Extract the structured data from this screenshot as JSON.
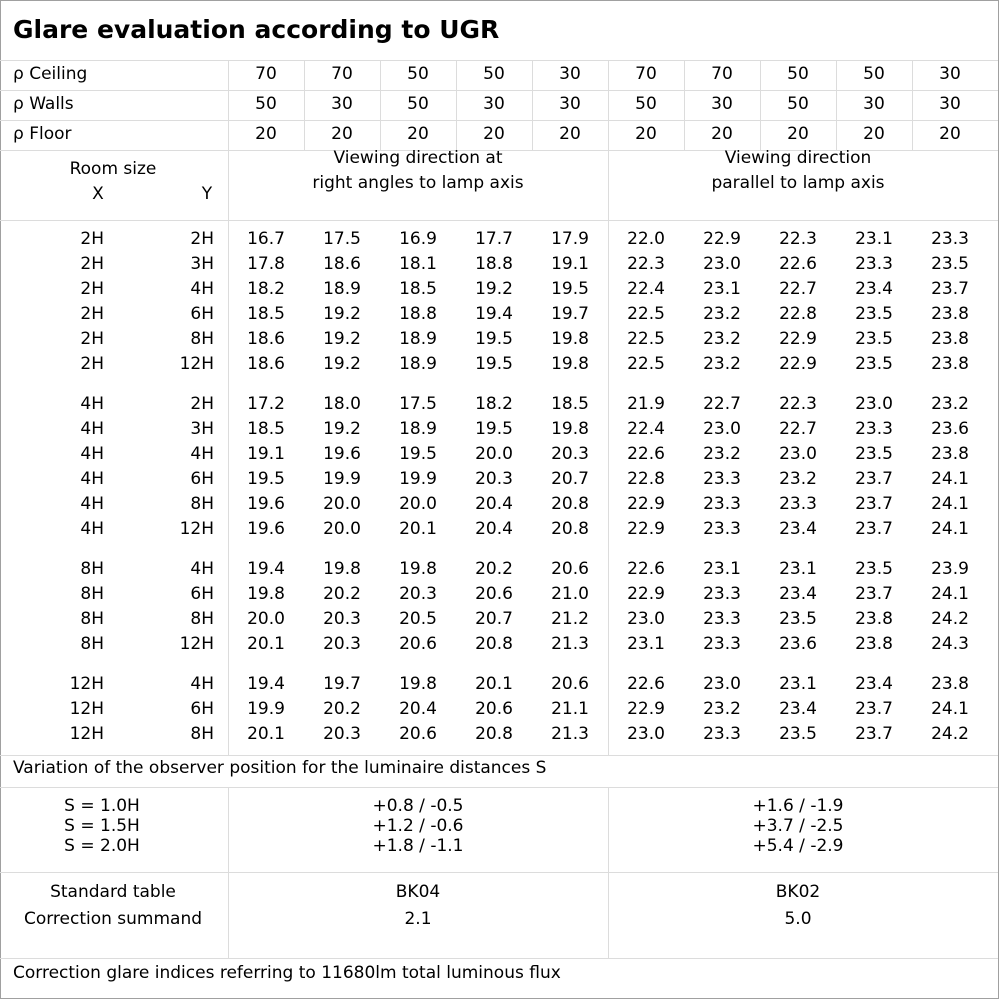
{
  "title": "Glare evaluation according to UGR",
  "reflectances": [
    {
      "label": "ρ Ceiling",
      "values": [
        "70",
        "70",
        "50",
        "50",
        "30",
        "70",
        "70",
        "50",
        "50",
        "30"
      ]
    },
    {
      "label": "ρ Walls",
      "values": [
        "50",
        "30",
        "50",
        "30",
        "30",
        "50",
        "30",
        "50",
        "30",
        "30"
      ]
    },
    {
      "label": "ρ Floor",
      "values": [
        "20",
        "20",
        "20",
        "20",
        "20",
        "20",
        "20",
        "20",
        "20",
        "20"
      ]
    }
  ],
  "header": {
    "room_size": "Room size",
    "x": "X",
    "y": "Y",
    "dir_right_1": "Viewing direction at",
    "dir_right_2": "right angles to lamp axis",
    "dir_parallel_1": "Viewing direction",
    "dir_parallel_2": "parallel to lamp axis"
  },
  "groups": [
    [
      [
        "2H",
        "2H",
        "16.7",
        "17.5",
        "16.9",
        "17.7",
        "17.9",
        "22.0",
        "22.9",
        "22.3",
        "23.1",
        "23.3"
      ],
      [
        "2H",
        "3H",
        "17.8",
        "18.6",
        "18.1",
        "18.8",
        "19.1",
        "22.3",
        "23.0",
        "22.6",
        "23.3",
        "23.5"
      ],
      [
        "2H",
        "4H",
        "18.2",
        "18.9",
        "18.5",
        "19.2",
        "19.5",
        "22.4",
        "23.1",
        "22.7",
        "23.4",
        "23.7"
      ],
      [
        "2H",
        "6H",
        "18.5",
        "19.2",
        "18.8",
        "19.4",
        "19.7",
        "22.5",
        "23.2",
        "22.8",
        "23.5",
        "23.8"
      ],
      [
        "2H",
        "8H",
        "18.6",
        "19.2",
        "18.9",
        "19.5",
        "19.8",
        "22.5",
        "23.2",
        "22.9",
        "23.5",
        "23.8"
      ],
      [
        "2H",
        "12H",
        "18.6",
        "19.2",
        "18.9",
        "19.5",
        "19.8",
        "22.5",
        "23.2",
        "22.9",
        "23.5",
        "23.8"
      ]
    ],
    [
      [
        "4H",
        "2H",
        "17.2",
        "18.0",
        "17.5",
        "18.2",
        "18.5",
        "21.9",
        "22.7",
        "22.3",
        "23.0",
        "23.2"
      ],
      [
        "4H",
        "3H",
        "18.5",
        "19.2",
        "18.9",
        "19.5",
        "19.8",
        "22.4",
        "23.0",
        "22.7",
        "23.3",
        "23.6"
      ],
      [
        "4H",
        "4H",
        "19.1",
        "19.6",
        "19.5",
        "20.0",
        "20.3",
        "22.6",
        "23.2",
        "23.0",
        "23.5",
        "23.8"
      ],
      [
        "4H",
        "6H",
        "19.5",
        "19.9",
        "19.9",
        "20.3",
        "20.7",
        "22.8",
        "23.3",
        "23.2",
        "23.7",
        "24.1"
      ],
      [
        "4H",
        "8H",
        "19.6",
        "20.0",
        "20.0",
        "20.4",
        "20.8",
        "22.9",
        "23.3",
        "23.3",
        "23.7",
        "24.1"
      ],
      [
        "4H",
        "12H",
        "19.6",
        "20.0",
        "20.1",
        "20.4",
        "20.8",
        "22.9",
        "23.3",
        "23.4",
        "23.7",
        "24.1"
      ]
    ],
    [
      [
        "8H",
        "4H",
        "19.4",
        "19.8",
        "19.8",
        "20.2",
        "20.6",
        "22.6",
        "23.1",
        "23.1",
        "23.5",
        "23.9"
      ],
      [
        "8H",
        "6H",
        "19.8",
        "20.2",
        "20.3",
        "20.6",
        "21.0",
        "22.9",
        "23.3",
        "23.4",
        "23.7",
        "24.1"
      ],
      [
        "8H",
        "8H",
        "20.0",
        "20.3",
        "20.5",
        "20.7",
        "21.2",
        "23.0",
        "23.3",
        "23.5",
        "23.8",
        "24.2"
      ],
      [
        "8H",
        "12H",
        "20.1",
        "20.3",
        "20.6",
        "20.8",
        "21.3",
        "23.1",
        "23.3",
        "23.6",
        "23.8",
        "24.3"
      ]
    ],
    [
      [
        "12H",
        "4H",
        "19.4",
        "19.7",
        "19.8",
        "20.1",
        "20.6",
        "22.6",
        "23.0",
        "23.1",
        "23.4",
        "23.8"
      ],
      [
        "12H",
        "6H",
        "19.9",
        "20.2",
        "20.4",
        "20.6",
        "21.1",
        "22.9",
        "23.2",
        "23.4",
        "23.7",
        "24.1"
      ],
      [
        "12H",
        "8H",
        "20.1",
        "20.3",
        "20.6",
        "20.8",
        "21.3",
        "23.0",
        "23.3",
        "23.5",
        "23.7",
        "24.2"
      ]
    ]
  ],
  "variation_label": "Variation of the observer position for the luminaire distances S",
  "variation": [
    {
      "s": "S = 1.0H",
      "right": "+0.8 / -0.5",
      "parallel": "+1.6 / -1.9"
    },
    {
      "s": "S = 1.5H",
      "right": "+1.2 / -0.6",
      "parallel": "+3.7 / -2.5"
    },
    {
      "s": "S = 2.0H",
      "right": "+1.8 / -1.1",
      "parallel": "+5.4 / -2.9"
    }
  ],
  "standard": {
    "label_table": "Standard table",
    "label_summand": "Correction summand",
    "right_table": "BK04",
    "right_summand": "2.1",
    "parallel_table": "BK02",
    "parallel_summand": "5.0"
  },
  "footer": "Correction glare indices referring to 11680lm total luminous flux"
}
